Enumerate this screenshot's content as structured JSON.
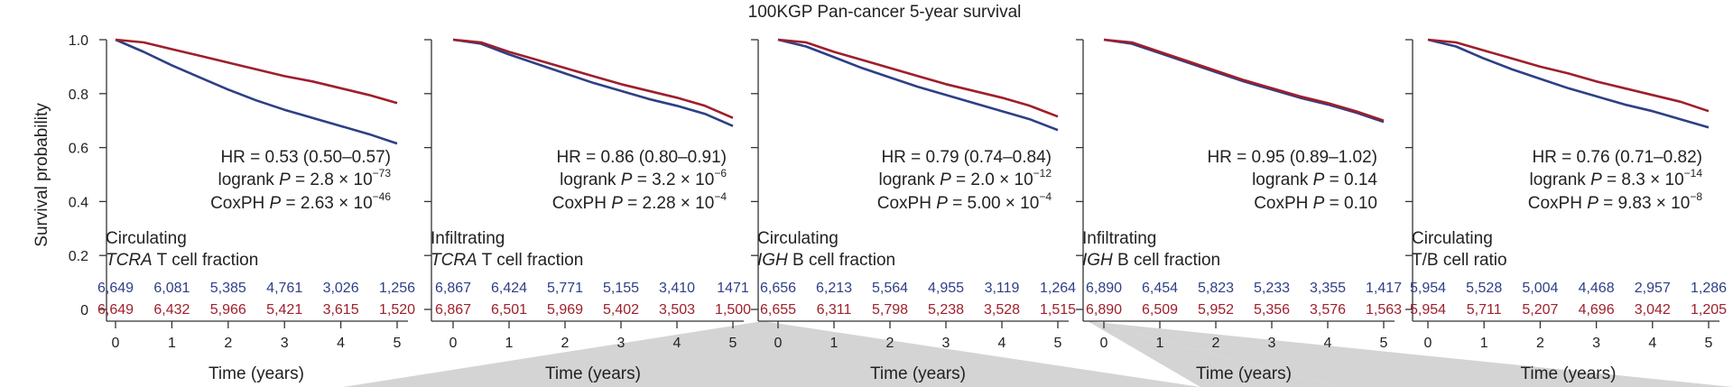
{
  "title": "100KGP Pan-cancer 5-year survival",
  "colors": {
    "low": "#2e3f86",
    "high": "#9e1f2b",
    "axis": "#333333",
    "wedge": "#d4d4d4"
  },
  "chart_data": [
    {
      "type": "line",
      "title": "Circulating TCRA T cell fraction",
      "label_line1": "Circulating",
      "label_line2_italic": "TCRA",
      "label_line2_rest": " T cell fraction",
      "xlabel": "Time (years)",
      "ylabel": "Survival probability",
      "xlim": [
        0,
        5
      ],
      "ylim": [
        0,
        1.0
      ],
      "xticks": [
        "0",
        "1",
        "2",
        "3",
        "4",
        "5"
      ],
      "yticks": [
        "0",
        "0.2",
        "0.4",
        "0.6",
        "0.8",
        "1.0"
      ],
      "stats": {
        "hr": "HR = 0.53 (0.50–0.57)",
        "logrank_mant": "2.8",
        "logrank_exp": "−73",
        "cox_mant": "2.63",
        "cox_exp": "−46"
      },
      "series": [
        {
          "name": "low",
          "x": [
            0,
            0.5,
            1,
            1.5,
            2,
            2.5,
            3,
            3.5,
            4,
            4.5,
            5
          ],
          "y": [
            1.0,
            0.955,
            0.905,
            0.86,
            0.815,
            0.775,
            0.74,
            0.71,
            0.68,
            0.65,
            0.615
          ]
        },
        {
          "name": "high",
          "x": [
            0,
            0.5,
            1,
            1.5,
            2,
            2.5,
            3,
            3.5,
            4,
            4.5,
            5
          ],
          "y": [
            1.0,
            0.99,
            0.965,
            0.94,
            0.915,
            0.89,
            0.865,
            0.845,
            0.82,
            0.795,
            0.765
          ]
        }
      ],
      "risk_low": [
        "6,649",
        "6,081",
        "5,385",
        "4,761",
        "3,026",
        "1,256"
      ],
      "risk_high": [
        "6,649",
        "6,432",
        "5,966",
        "5,421",
        "3,615",
        "1,520"
      ]
    },
    {
      "type": "line",
      "title": "Infiltrating TCRA T cell fraction",
      "label_line1": "Infiltrating",
      "label_line2_italic": "TCRA",
      "label_line2_rest": " T cell fraction",
      "xlabel": "Time (years)",
      "ylabel": "",
      "xlim": [
        0,
        5
      ],
      "ylim": [
        0,
        1.0
      ],
      "xticks": [
        "0",
        "1",
        "2",
        "3",
        "4",
        "5"
      ],
      "yticks": [],
      "stats": {
        "hr": "HR = 0.86 (0.80–0.91)",
        "logrank_mant": "3.2",
        "logrank_exp": "−6",
        "cox_mant": "2.28",
        "cox_exp": "−4"
      },
      "series": [
        {
          "name": "low",
          "x": [
            0,
            0.5,
            1,
            1.5,
            2,
            2.5,
            3,
            3.5,
            4,
            4.5,
            5
          ],
          "y": [
            1.0,
            0.985,
            0.945,
            0.91,
            0.875,
            0.84,
            0.81,
            0.78,
            0.755,
            0.725,
            0.68
          ]
        },
        {
          "name": "high",
          "x": [
            0,
            0.5,
            1,
            1.5,
            2,
            2.5,
            3,
            3.5,
            4,
            4.5,
            5
          ],
          "y": [
            1.0,
            0.99,
            0.955,
            0.925,
            0.895,
            0.865,
            0.835,
            0.81,
            0.785,
            0.755,
            0.71
          ]
        }
      ],
      "risk_low": [
        "6,867",
        "6,424",
        "5,771",
        "5,155",
        "3,410",
        "1471"
      ],
      "risk_high": [
        "6,867",
        "6,501",
        "5,969",
        "5,402",
        "3,503",
        "1,500"
      ]
    },
    {
      "type": "line",
      "title": "Circulating IGH B cell fraction",
      "label_line1": "Circulating",
      "label_line2_italic": "IGH",
      "label_line2_rest": " B cell fraction",
      "xlabel": "Time (years)",
      "ylabel": "",
      "xlim": [
        0,
        5
      ],
      "ylim": [
        0,
        1.0
      ],
      "xticks": [
        "0",
        "1",
        "2",
        "3",
        "4",
        "5"
      ],
      "yticks": [],
      "stats": {
        "hr": "HR = 0.79 (0.74–0.84)",
        "logrank_mant": "2.0",
        "logrank_exp": "−12",
        "cox_mant": "5.00",
        "cox_exp": "−4"
      },
      "series": [
        {
          "name": "low",
          "x": [
            0,
            0.5,
            1,
            1.5,
            2,
            2.5,
            3,
            3.5,
            4,
            4.5,
            5
          ],
          "y": [
            1.0,
            0.975,
            0.935,
            0.895,
            0.86,
            0.825,
            0.795,
            0.765,
            0.735,
            0.705,
            0.665
          ]
        },
        {
          "name": "high",
          "x": [
            0,
            0.5,
            1,
            1.5,
            2,
            2.5,
            3,
            3.5,
            4,
            4.5,
            5
          ],
          "y": [
            1.0,
            0.99,
            0.955,
            0.925,
            0.895,
            0.865,
            0.835,
            0.81,
            0.785,
            0.755,
            0.715
          ]
        }
      ],
      "risk_low": [
        "6,656",
        "6,213",
        "5,564",
        "4,955",
        "3,119",
        "1,264"
      ],
      "risk_high": [
        "6,655",
        "6,311",
        "5,798",
        "5,238",
        "3,528",
        "1,515"
      ]
    },
    {
      "type": "line",
      "title": "Infiltrating IGH B cell fraction",
      "label_line1": "Infiltrating",
      "label_line2_italic": "IGH",
      "label_line2_rest": " B cell fraction",
      "xlabel": "Time (years)",
      "ylabel": "",
      "xlim": [
        0,
        5
      ],
      "ylim": [
        0,
        1.0
      ],
      "xticks": [
        "0",
        "1",
        "2",
        "3",
        "4",
        "5"
      ],
      "yticks": [],
      "stats": {
        "hr": "HR = 0.95 (0.89–1.02)",
        "logrank_plain": "0.14",
        "cox_plain": "0.10"
      },
      "series": [
        {
          "name": "low",
          "x": [
            0,
            0.5,
            1,
            1.5,
            2,
            2.5,
            3,
            3.5,
            4,
            4.5,
            5
          ],
          "y": [
            1.0,
            0.985,
            0.95,
            0.915,
            0.88,
            0.845,
            0.815,
            0.785,
            0.76,
            0.73,
            0.695
          ]
        },
        {
          "name": "high",
          "x": [
            0,
            0.5,
            1,
            1.5,
            2,
            2.5,
            3,
            3.5,
            4,
            4.5,
            5
          ],
          "y": [
            1.0,
            0.99,
            0.955,
            0.92,
            0.885,
            0.85,
            0.82,
            0.79,
            0.765,
            0.735,
            0.7
          ]
        }
      ],
      "risk_low": [
        "6,890",
        "6,454",
        "5,823",
        "5,233",
        "3,355",
        "1,417"
      ],
      "risk_high": [
        "6,890",
        "6,509",
        "5,952",
        "5,356",
        "3,576",
        "1,563"
      ]
    },
    {
      "type": "line",
      "title": "Circulating T/B cell ratio",
      "label_line1": "Circulating",
      "label_line2_italic": "",
      "label_line2_rest": "T/B cell ratio",
      "xlabel": "Time (years)",
      "ylabel": "",
      "xlim": [
        0,
        5
      ],
      "ylim": [
        0,
        1.0
      ],
      "xticks": [
        "0",
        "1",
        "2",
        "3",
        "4",
        "5"
      ],
      "yticks": [],
      "stats": {
        "hr": "HR = 0.76 (0.71–0.82)",
        "logrank_mant": "8.3",
        "logrank_exp": "−14",
        "cox_mant": "9.83",
        "cox_exp": "−8"
      },
      "series": [
        {
          "name": "low",
          "x": [
            0,
            0.5,
            1,
            1.5,
            2,
            2.5,
            3,
            3.5,
            4,
            4.5,
            5
          ],
          "y": [
            1.0,
            0.975,
            0.93,
            0.89,
            0.855,
            0.82,
            0.79,
            0.76,
            0.735,
            0.705,
            0.675
          ]
        },
        {
          "name": "high",
          "x": [
            0,
            0.5,
            1,
            1.5,
            2,
            2.5,
            3,
            3.5,
            4,
            4.5,
            5
          ],
          "y": [
            1.0,
            0.99,
            0.96,
            0.93,
            0.9,
            0.875,
            0.845,
            0.82,
            0.795,
            0.77,
            0.735
          ]
        }
      ],
      "risk_low": [
        "5,954",
        "5,528",
        "5,004",
        "4,468",
        "2,957",
        "1,286"
      ],
      "risk_high": [
        "5,954",
        "5,711",
        "5,207",
        "4,696",
        "3,042",
        "1,205"
      ]
    }
  ]
}
